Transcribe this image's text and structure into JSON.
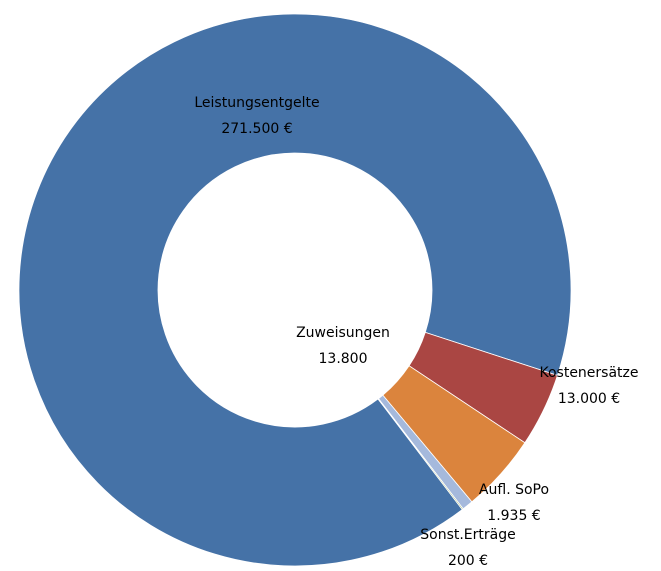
{
  "chart_data": {
    "type": "donut",
    "categories": [
      "Leistungsentgelte",
      "Kostenersätze",
      "Zuweisungen",
      "Aufl. SoPo",
      "Sonst.Erträge"
    ],
    "values": [
      271500,
      13000,
      13800,
      1935,
      200
    ],
    "value_labels": [
      "271.500 €",
      "13.000 €",
      "13.800",
      "1.935 €",
      "200 €"
    ],
    "colors": [
      "#4572a7",
      "#aa4643",
      "#db843d",
      "#a5b9dc",
      "#89a54e"
    ]
  }
}
